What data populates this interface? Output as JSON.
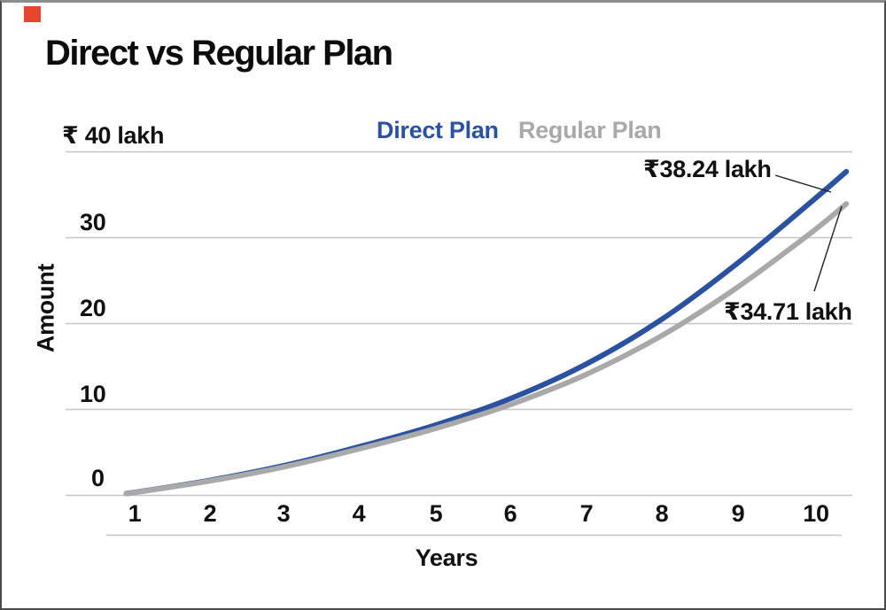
{
  "marker": {
    "color": "#e8432b"
  },
  "title": "Direct vs Regular Plan",
  "legend": {
    "direct_label": "Direct Plan",
    "direct_color": "#2a52a0",
    "regular_label": "Regular Plan",
    "regular_color": "#a9a9a9"
  },
  "y_axis": {
    "title": "Amount",
    "tick_labels": [
      "₹ 40 lakh",
      "30",
      "20",
      "10",
      "0"
    ]
  },
  "x_axis": {
    "title": "Years",
    "tick_labels": [
      "1",
      "2",
      "3",
      "4",
      "5",
      "6",
      "7",
      "8",
      "9",
      "10"
    ]
  },
  "annotations": {
    "direct_end": "₹38.24 lakh",
    "regular_end": "₹34.71 lakh"
  },
  "chart_data": {
    "type": "line",
    "title": "Direct vs Regular Plan",
    "xlabel": "Years",
    "ylabel": "Amount",
    "x": [
      1,
      2,
      3,
      4,
      5,
      6,
      7,
      8,
      9,
      10
    ],
    "ylim": [
      0,
      40
    ],
    "y_unit": "lakh",
    "grid": true,
    "grid_color": "#c6c6c6",
    "legend_position": "top",
    "series": [
      {
        "name": "Direct Plan",
        "color": "#2a52a0",
        "values": [
          0.35,
          1.75,
          3.5,
          5.7,
          8.2,
          11.3,
          15.3,
          20.5,
          27.0,
          34.3
        ],
        "final_value_lakh": 38.24,
        "final_label": "₹38.24 lakh",
        "draw_points": [
          [
            0.9,
            0.25
          ],
          [
            1,
            0.35
          ],
          [
            2,
            1.75
          ],
          [
            3,
            3.5
          ],
          [
            4,
            5.7
          ],
          [
            5,
            8.2
          ],
          [
            6,
            11.3
          ],
          [
            7,
            15.3
          ],
          [
            8,
            20.5
          ],
          [
            9,
            27.0
          ],
          [
            10,
            34.3
          ],
          [
            10.45,
            37.7
          ]
        ]
      },
      {
        "name": "Regular Plan",
        "color": "#a9a9a9",
        "values": [
          0.33,
          1.68,
          3.35,
          5.45,
          7.8,
          10.6,
          14.1,
          18.6,
          24.2,
          30.7
        ],
        "final_value_lakh": 34.71,
        "final_label": "₹34.71 lakh",
        "draw_points": [
          [
            0.9,
            0.25
          ],
          [
            1,
            0.33
          ],
          [
            2,
            1.68
          ],
          [
            3,
            3.35
          ],
          [
            4,
            5.45
          ],
          [
            5,
            7.8
          ],
          [
            6,
            10.6
          ],
          [
            7,
            14.1
          ],
          [
            8,
            18.6
          ],
          [
            9,
            24.2
          ],
          [
            10,
            30.7
          ],
          [
            10.45,
            33.95
          ]
        ]
      }
    ]
  }
}
